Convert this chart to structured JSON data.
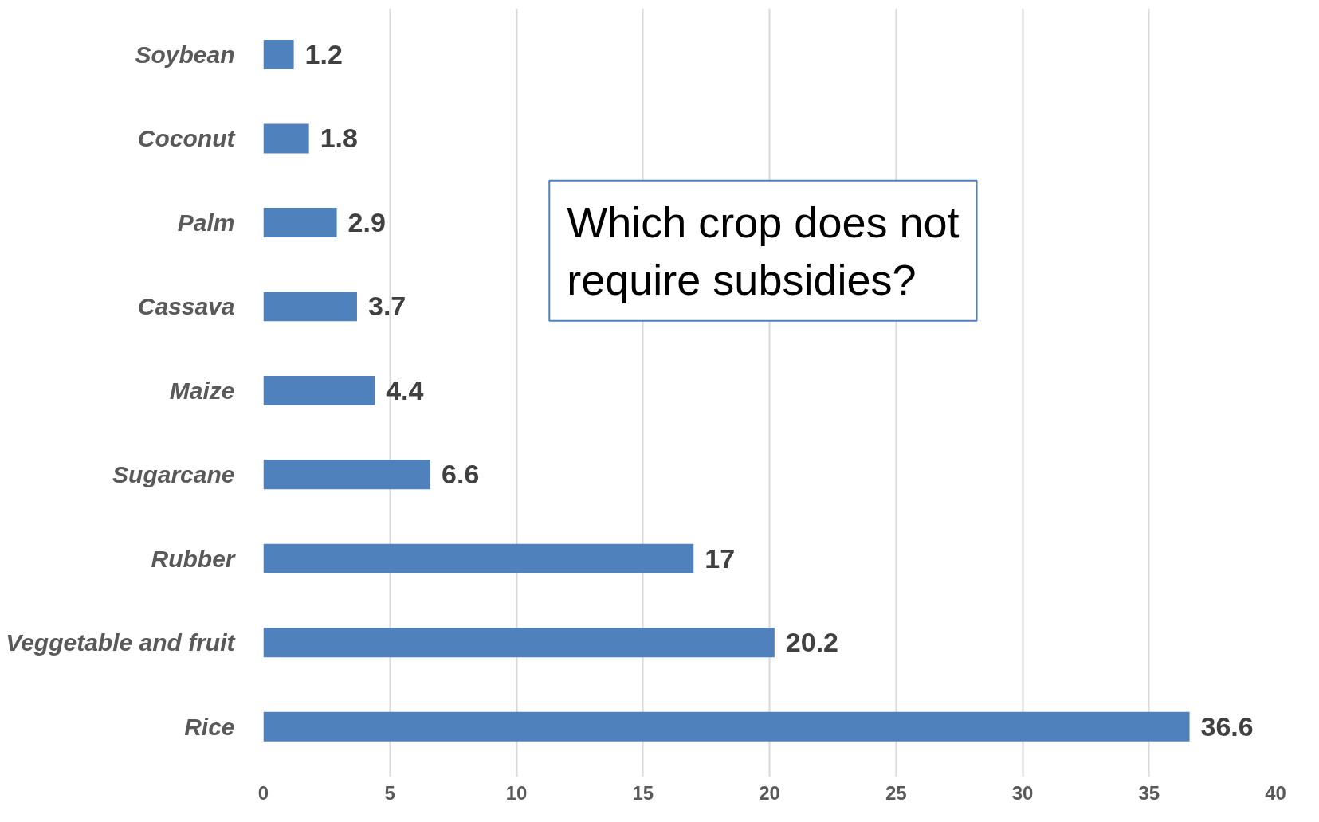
{
  "chart_data": {
    "type": "bar",
    "orientation": "horizontal",
    "categories": [
      "Soybean",
      "Coconut",
      "Palm",
      "Cassava",
      "Maize",
      "Sugarcane",
      "Rubber",
      "Veggetable and fruit",
      "Rice"
    ],
    "values": [
      1.2,
      1.8,
      2.9,
      3.7,
      4.4,
      6.6,
      17,
      20.2,
      36.6
    ],
    "color": "#4f81bd",
    "xlim": [
      0,
      40
    ],
    "xticks": [
      0,
      5,
      10,
      15,
      20,
      25,
      30,
      35,
      40
    ],
    "grid": "x",
    "data_labels": true,
    "annotations": [
      "Which crop does not require subsidies?"
    ]
  }
}
